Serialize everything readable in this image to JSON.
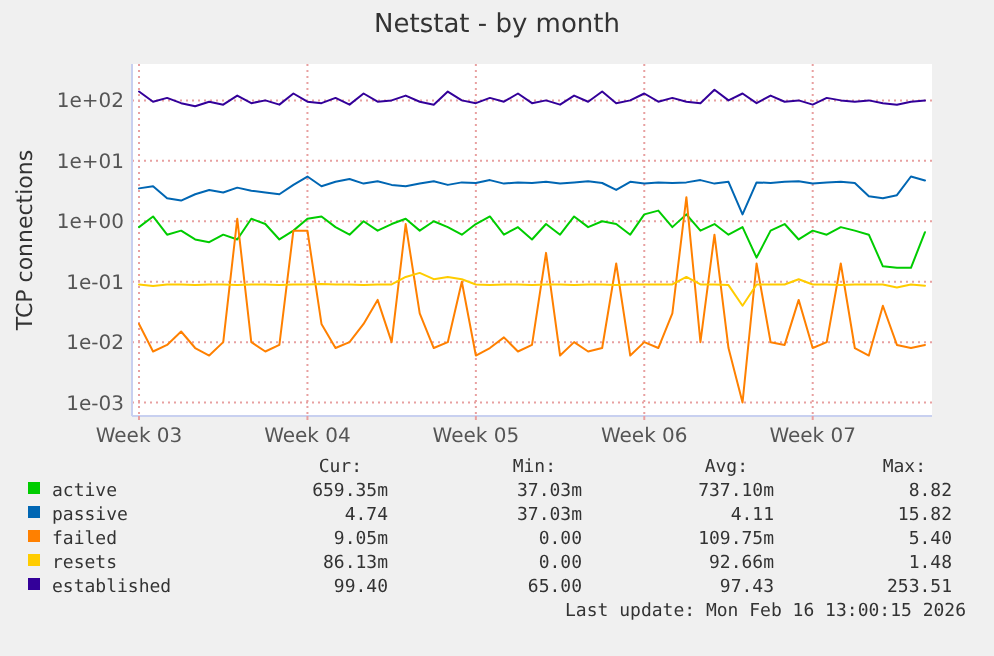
{
  "chart_data": {
    "type": "line",
    "title": "Netstat - by month",
    "ylabel": "TCP connections",
    "log": "y",
    "grid": true,
    "legend": "bottom",
    "marker": "none",
    "line_style": "solid",
    "categories": [
      "Week 03",
      null,
      null,
      null,
      null,
      null,
      null,
      null,
      null,
      null,
      null,
      null,
      "Week 04",
      null,
      null,
      null,
      null,
      null,
      null,
      null,
      null,
      null,
      null,
      null,
      "Week 05",
      null,
      null,
      null,
      null,
      null,
      null,
      null,
      null,
      null,
      null,
      null,
      "Week 06",
      null,
      null,
      null,
      null,
      null,
      null,
      null,
      null,
      null,
      null,
      null,
      "Week 07",
      null,
      null,
      null,
      null,
      null,
      null,
      null,
      null
    ],
    "ylim": [
      0.0006,
      400
    ],
    "yticks": [
      {
        "value": 0.001,
        "label": "1e-03"
      },
      {
        "value": 0.01,
        "label": "1e-02"
      },
      {
        "value": 0.1,
        "label": "1e-01"
      },
      {
        "value": 1,
        "label": "1e+00"
      },
      {
        "value": 10,
        "label": "1e+01"
      },
      {
        "value": 100,
        "label": "1e+02"
      }
    ],
    "series": [
      {
        "name": "active",
        "color": "#00cc00",
        "values": [
          0.8,
          1.2,
          0.6,
          0.7,
          0.5,
          0.45,
          0.6,
          0.5,
          1.1,
          0.9,
          0.5,
          0.7,
          1.1,
          1.2,
          0.8,
          0.6,
          1.0,
          0.7,
          0.9,
          1.1,
          0.7,
          1.0,
          0.8,
          0.6,
          0.9,
          1.2,
          0.6,
          0.8,
          0.5,
          0.9,
          0.6,
          1.2,
          0.8,
          1.0,
          0.9,
          0.6,
          1.3,
          1.5,
          0.8,
          1.3,
          0.7,
          0.9,
          0.6,
          0.8,
          0.25,
          0.7,
          0.9,
          0.5,
          0.7,
          0.6,
          0.8,
          0.7,
          0.6,
          0.18,
          0.17,
          0.17,
          0.66
        ]
      },
      {
        "name": "passive",
        "color": "#0066b3",
        "values": [
          3.5,
          3.8,
          2.4,
          2.2,
          2.8,
          3.3,
          3.0,
          3.6,
          3.2,
          3.0,
          2.8,
          4.0,
          5.5,
          3.8,
          4.5,
          5.0,
          4.2,
          4.6,
          4.0,
          3.8,
          4.2,
          4.6,
          4.0,
          4.4,
          4.3,
          4.8,
          4.2,
          4.4,
          4.3,
          4.5,
          4.2,
          4.4,
          4.6,
          4.3,
          3.3,
          4.5,
          4.2,
          4.4,
          4.3,
          4.4,
          4.8,
          4.2,
          4.5,
          1.3,
          4.4,
          4.3,
          4.5,
          4.6,
          4.2,
          4.4,
          4.5,
          4.3,
          2.6,
          2.4,
          2.7,
          5.5,
          4.74
        ]
      },
      {
        "name": "failed",
        "color": "#ff8000",
        "values": [
          0.02,
          0.007,
          0.009,
          0.015,
          0.008,
          0.006,
          0.01,
          1.1,
          0.01,
          0.007,
          0.009,
          0.7,
          0.7,
          0.02,
          0.008,
          0.01,
          0.02,
          0.05,
          0.01,
          0.9,
          0.03,
          0.008,
          0.01,
          0.1,
          0.006,
          0.008,
          0.012,
          0.007,
          0.009,
          0.3,
          0.006,
          0.01,
          0.007,
          0.008,
          0.2,
          0.006,
          0.01,
          0.008,
          0.03,
          2.5,
          0.01,
          0.6,
          0.008,
          0.001,
          0.2,
          0.01,
          0.009,
          0.05,
          0.008,
          0.01,
          0.2,
          0.008,
          0.006,
          0.04,
          0.009,
          0.008,
          0.009
        ]
      },
      {
        "name": "resets",
        "color": "#ffcc00",
        "values": [
          0.09,
          0.085,
          0.09,
          0.09,
          0.088,
          0.09,
          0.09,
          0.088,
          0.09,
          0.09,
          0.088,
          0.09,
          0.09,
          0.092,
          0.09,
          0.09,
          0.088,
          0.09,
          0.09,
          0.12,
          0.14,
          0.11,
          0.12,
          0.11,
          0.09,
          0.088,
          0.09,
          0.09,
          0.088,
          0.09,
          0.09,
          0.088,
          0.09,
          0.09,
          0.088,
          0.09,
          0.09,
          0.09,
          0.09,
          0.12,
          0.09,
          0.09,
          0.088,
          0.04,
          0.09,
          0.09,
          0.09,
          0.11,
          0.09,
          0.09,
          0.088,
          0.09,
          0.09,
          0.09,
          0.08,
          0.09,
          0.086
        ]
      },
      {
        "name": "established",
        "color": "#330099",
        "values": [
          140,
          95,
          110,
          90,
          80,
          95,
          85,
          120,
          90,
          100,
          85,
          130,
          95,
          90,
          110,
          85,
          130,
          95,
          100,
          120,
          95,
          85,
          140,
          100,
          90,
          110,
          95,
          130,
          90,
          100,
          85,
          120,
          95,
          140,
          90,
          100,
          130,
          95,
          110,
          95,
          90,
          150,
          100,
          130,
          90,
          120,
          95,
          100,
          85,
          110,
          100,
          95,
          100,
          90,
          85,
          95,
          99.4
        ]
      }
    ],
    "annotations": [
      "Cur:",
      "Min:",
      "Avg:",
      "Max:",
      "659.35m",
      "37.03m",
      "737.10m",
      "8.82",
      "4.74",
      "37.03m",
      "4.11",
      "15.82",
      "9.05m",
      "0.00",
      "109.75m",
      "5.40",
      "86.13m",
      "0.00",
      "92.66m",
      "1.48",
      "99.40",
      "65.00",
      "97.43",
      "253.51",
      "Last update: Mon Feb 16 13:00:15 2026"
    ]
  }
}
